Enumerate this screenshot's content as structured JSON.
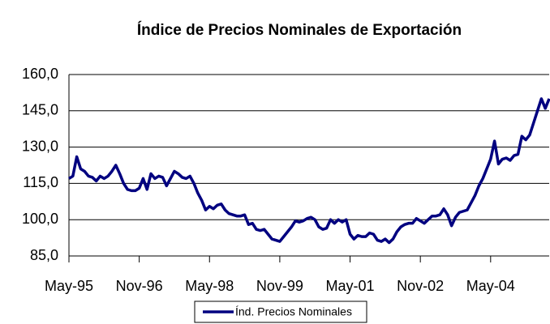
{
  "chart_data": {
    "type": "line",
    "title": "Índice de Precios Nominales de Exportación",
    "categories": [
      "May-95",
      null,
      null,
      null,
      null,
      null,
      null,
      null,
      null,
      null,
      null,
      null,
      null,
      null,
      null,
      null,
      null,
      null,
      "Nov-96",
      null,
      null,
      null,
      null,
      null,
      null,
      null,
      null,
      null,
      null,
      null,
      null,
      null,
      null,
      null,
      null,
      null,
      "May-98",
      null,
      null,
      null,
      null,
      null,
      null,
      null,
      null,
      null,
      null,
      null,
      null,
      null,
      null,
      null,
      null,
      null,
      "Nov-99",
      null,
      null,
      null,
      null,
      null,
      null,
      null,
      null,
      null,
      null,
      null,
      null,
      null,
      null,
      null,
      null,
      null,
      "May-01",
      null,
      null,
      null,
      null,
      null,
      null,
      null,
      null,
      null,
      null,
      null,
      null,
      null,
      null,
      null,
      null,
      null,
      "Nov-02",
      null,
      null,
      null,
      null,
      null,
      null,
      null,
      null,
      null,
      null,
      null,
      null,
      null,
      null,
      null,
      null,
      null,
      "May-04",
      null,
      null,
      null,
      null,
      null,
      null,
      null,
      null,
      null,
      null,
      null,
      null,
      null,
      null,
      null
    ],
    "series": [
      {
        "name": "Índ. Precios Nominales",
        "color": "#000080",
        "values": [
          117,
          118,
          126,
          121,
          120,
          118,
          117.5,
          116,
          118,
          117,
          118,
          120,
          122.5,
          119,
          115,
          112.5,
          112,
          112,
          113,
          117,
          112.5,
          119,
          117,
          118,
          117.5,
          114,
          117,
          120,
          119,
          117.5,
          117,
          118,
          115,
          111,
          108,
          104,
          105.5,
          104.5,
          106,
          106.5,
          104,
          102.5,
          102,
          101.5,
          101.5,
          102,
          98,
          98.5,
          96,
          95.5,
          96,
          94,
          92,
          91.5,
          91,
          93,
          95,
          97,
          99.5,
          99,
          99.5,
          100.5,
          101,
          100,
          97,
          96,
          96.5,
          100,
          98.5,
          100,
          99,
          100,
          94,
          92,
          93.5,
          93,
          93,
          94.5,
          94,
          91.5,
          91,
          92,
          90.5,
          92,
          95,
          97,
          98,
          98.5,
          98.5,
          100.5,
          99.5,
          98.5,
          100,
          101.5,
          101.5,
          102,
          104.5,
          102,
          97.5,
          101,
          103,
          103.5,
          104,
          107,
          110,
          114,
          117,
          121,
          125,
          132.5,
          123,
          125,
          125.5,
          124.5,
          126.5,
          127,
          134.5,
          133,
          135,
          140,
          145,
          150,
          146,
          150
        ]
      }
    ],
    "ylim": [
      85,
      160
    ],
    "yticks": [
      {
        "value": 85,
        "label": "85,0"
      },
      {
        "value": 100,
        "label": "100,0"
      },
      {
        "value": 115,
        "label": "115,0"
      },
      {
        "value": 130,
        "label": "130,0"
      },
      {
        "value": 145,
        "label": "145,0"
      },
      {
        "value": 160,
        "label": "160,0"
      }
    ],
    "grid": true,
    "legend": "bottom"
  }
}
